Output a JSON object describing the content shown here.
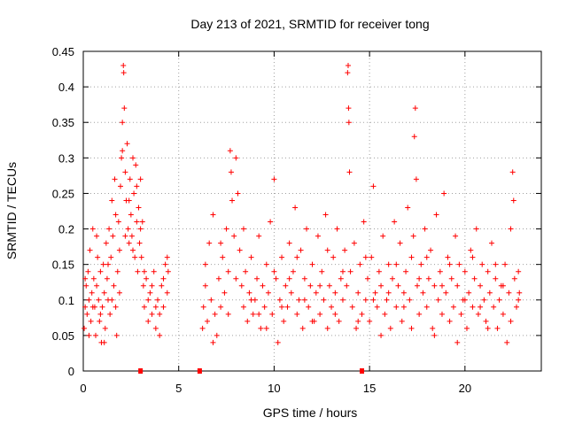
{
  "chart_data": {
    "type": "scatter",
    "title": "Day 213 of 2021, SRMTID for receiver tong",
    "xlabel": "GPS time / hours",
    "ylabel": "SRMTID / TECUs",
    "xlim": [
      0,
      24
    ],
    "ylim": [
      0,
      0.45
    ],
    "xticks": [
      0,
      5,
      10,
      15,
      20
    ],
    "xtick_labels": [
      "0",
      "5",
      "10",
      "15",
      "20"
    ],
    "yticks": [
      0,
      0.05,
      0.1,
      0.15,
      0.2,
      0.25,
      0.3,
      0.35,
      0.4,
      0.45
    ],
    "ytick_labels": [
      "0",
      "0.05",
      "0.1",
      "0.15",
      "0.2",
      "0.25",
      "0.3",
      "0.35",
      "0.4",
      "0.45"
    ],
    "grid": true,
    "marker": "+",
    "color": "#ff0000",
    "series": [
      {
        "name": "SRMTID",
        "points": [
          [
            0.05,
            0.06
          ],
          [
            0.1,
            0.09
          ],
          [
            0.15,
            0.12
          ],
          [
            0.2,
            0.08
          ],
          [
            0.25,
            0.14
          ],
          [
            0.3,
            0.1
          ],
          [
            0.35,
            0.17
          ],
          [
            0.4,
            0.07
          ],
          [
            0.45,
            0.11
          ],
          [
            0.5,
            0.2
          ],
          [
            0.55,
            0.13
          ],
          [
            0.6,
            0.09
          ],
          [
            0.65,
            0.05
          ],
          [
            0.7,
            0.12
          ],
          [
            0.75,
            0.16
          ],
          [
            0.8,
            0.1
          ],
          [
            0.85,
            0.07
          ],
          [
            0.9,
            0.14
          ],
          [
            0.95,
            0.04
          ],
          [
            1.0,
            0.09
          ],
          [
            1.05,
            0.15
          ],
          [
            1.1,
            0.11
          ],
          [
            1.15,
            0.06
          ],
          [
            1.2,
            0.18
          ],
          [
            1.25,
            0.13
          ],
          [
            1.3,
            0.1
          ],
          [
            1.35,
            0.2
          ],
          [
            1.4,
            0.08
          ],
          [
            1.45,
            0.16
          ],
          [
            1.5,
            0.24
          ],
          [
            1.55,
            0.19
          ],
          [
            1.6,
            0.12
          ],
          [
            1.65,
            0.27
          ],
          [
            1.7,
            0.09
          ],
          [
            1.75,
            0.05
          ],
          [
            1.8,
            0.14
          ],
          [
            1.85,
            0.21
          ],
          [
            1.9,
            0.17
          ],
          [
            1.95,
            0.26
          ],
          [
            2.0,
            0.3
          ],
          [
            2.05,
            0.35
          ],
          [
            2.1,
            0.43
          ],
          [
            2.12,
            0.42
          ],
          [
            2.15,
            0.37
          ],
          [
            2.2,
            0.28
          ],
          [
            2.25,
            0.24
          ],
          [
            2.3,
            0.32
          ],
          [
            2.35,
            0.2
          ],
          [
            2.4,
            0.18
          ],
          [
            2.45,
            0.27
          ],
          [
            2.5,
            0.22
          ],
          [
            2.55,
            0.19
          ],
          [
            2.6,
            0.3
          ],
          [
            2.65,
            0.25
          ],
          [
            2.7,
            0.16
          ],
          [
            2.75,
            0.29
          ],
          [
            2.8,
            0.21
          ],
          [
            2.85,
            0.14
          ],
          [
            2.9,
            0.23
          ],
          [
            2.95,
            0.18
          ],
          [
            3.0,
            0.27
          ],
          [
            3.05,
            0.16
          ],
          [
            3.1,
            0.21
          ],
          [
            3.15,
            0.12
          ],
          [
            3.2,
            0.09
          ],
          [
            3.3,
            0.13
          ],
          [
            3.4,
            0.07
          ],
          [
            3.5,
            0.11
          ],
          [
            3.6,
            0.08
          ],
          [
            3.7,
            0.14
          ],
          [
            3.8,
            0.06
          ],
          [
            3.9,
            0.1
          ],
          [
            4.0,
            0.05
          ],
          [
            4.1,
            0.12
          ],
          [
            4.2,
            0.09
          ],
          [
            4.3,
            0.15
          ],
          [
            4.4,
            0.11
          ],
          [
            4.45,
            0.14
          ],
          [
            0.1,
            0.13
          ],
          [
            0.3,
            0.05
          ],
          [
            0.5,
            0.09
          ],
          [
            0.7,
            0.19
          ],
          [
            0.9,
            0.08
          ],
          [
            1.1,
            0.04
          ],
          [
            1.3,
            0.15
          ],
          [
            1.5,
            0.1
          ],
          [
            1.7,
            0.22
          ],
          [
            1.9,
            0.11
          ],
          [
            2.05,
            0.31
          ],
          [
            2.2,
            0.19
          ],
          [
            2.4,
            0.24
          ],
          [
            2.6,
            0.17
          ],
          [
            2.8,
            0.26
          ],
          [
            3.0,
            0.2
          ],
          [
            3.2,
            0.14
          ],
          [
            3.4,
            0.1
          ],
          [
            3.6,
            0.12
          ],
          [
            3.8,
            0.09
          ],
          [
            4.0,
            0.08
          ],
          [
            4.2,
            0.13
          ],
          [
            4.4,
            0.16
          ],
          [
            6.25,
            0.06
          ],
          [
            6.3,
            0.09
          ],
          [
            6.4,
            0.12
          ],
          [
            6.5,
            0.07
          ],
          [
            6.6,
            0.18
          ],
          [
            6.7,
            0.1
          ],
          [
            6.8,
            0.22
          ],
          [
            6.9,
            0.08
          ],
          [
            7.0,
            0.05
          ],
          [
            7.1,
            0.13
          ],
          [
            7.2,
            0.09
          ],
          [
            7.3,
            0.16
          ],
          [
            7.4,
            0.11
          ],
          [
            7.5,
            0.2
          ],
          [
            7.6,
            0.14
          ],
          [
            7.7,
            0.31
          ],
          [
            7.75,
            0.28
          ],
          [
            7.8,
            0.24
          ],
          [
            7.9,
            0.19
          ],
          [
            8.0,
            0.3
          ],
          [
            8.1,
            0.25
          ],
          [
            8.2,
            0.17
          ],
          [
            8.3,
            0.12
          ],
          [
            8.4,
            0.09
          ],
          [
            8.5,
            0.14
          ],
          [
            8.6,
            0.07
          ],
          [
            8.7,
            0.11
          ],
          [
            8.8,
            0.16
          ],
          [
            8.9,
            0.08
          ],
          [
            9.0,
            0.1
          ],
          [
            9.1,
            0.13
          ],
          [
            9.2,
            0.19
          ],
          [
            9.3,
            0.06
          ],
          [
            9.4,
            0.12
          ],
          [
            9.5,
            0.09
          ],
          [
            9.6,
            0.15
          ],
          [
            9.7,
            0.11
          ],
          [
            9.8,
            0.21
          ],
          [
            9.9,
            0.08
          ],
          [
            10.0,
            0.27
          ],
          [
            10.1,
            0.13
          ],
          [
            10.2,
            0.04
          ],
          [
            10.3,
            0.1
          ],
          [
            10.4,
            0.16
          ],
          [
            10.5,
            0.07
          ],
          [
            10.6,
            0.12
          ],
          [
            10.7,
            0.09
          ],
          [
            10.8,
            0.18
          ],
          [
            10.9,
            0.11
          ],
          [
            11.0,
            0.14
          ],
          [
            11.1,
            0.23
          ],
          [
            11.2,
            0.08
          ],
          [
            11.3,
            0.1
          ],
          [
            11.4,
            0.17
          ],
          [
            11.5,
            0.06
          ],
          [
            11.6,
            0.13
          ],
          [
            11.7,
            0.2
          ],
          [
            11.8,
            0.09
          ],
          [
            11.9,
            0.12
          ],
          [
            12.0,
            0.15
          ],
          [
            12.1,
            0.07
          ],
          [
            12.2,
            0.11
          ],
          [
            12.3,
            0.19
          ],
          [
            12.4,
            0.08
          ],
          [
            12.5,
            0.14
          ],
          [
            12.6,
            0.1
          ],
          [
            12.7,
            0.22
          ],
          [
            12.8,
            0.06
          ],
          [
            12.9,
            0.12
          ],
          [
            13.0,
            0.09
          ],
          [
            13.1,
            0.16
          ],
          [
            13.2,
            0.11
          ],
          [
            13.3,
            0.2
          ],
          [
            13.4,
            0.07
          ],
          [
            13.5,
            0.13
          ],
          [
            13.6,
            0.1
          ],
          [
            13.7,
            0.17
          ],
          [
            13.8,
            0.12
          ],
          [
            13.85,
            0.42
          ],
          [
            13.88,
            0.43
          ],
          [
            13.9,
            0.37
          ],
          [
            13.92,
            0.35
          ],
          [
            13.95,
            0.28
          ],
          [
            14.0,
            0.14
          ],
          [
            14.1,
            0.09
          ],
          [
            14.2,
            0.18
          ],
          [
            14.3,
            0.06
          ],
          [
            14.4,
            0.11
          ],
          [
            14.5,
            0.15
          ],
          [
            14.6,
            0.08
          ],
          [
            14.7,
            0.21
          ],
          [
            14.8,
            0.1
          ],
          [
            14.9,
            0.13
          ],
          [
            15.0,
            0.07
          ],
          [
            15.1,
            0.16
          ],
          [
            15.2,
            0.26
          ],
          [
            15.3,
            0.11
          ],
          [
            15.4,
            0.09
          ],
          [
            15.5,
            0.14
          ],
          [
            15.6,
            0.12
          ],
          [
            15.7,
            0.19
          ],
          [
            15.8,
            0.08
          ],
          [
            15.9,
            0.1
          ],
          [
            16.0,
            0.15
          ],
          [
            16.1,
            0.06
          ],
          [
            16.2,
            0.13
          ],
          [
            16.3,
            0.21
          ],
          [
            16.4,
            0.09
          ],
          [
            16.5,
            0.12
          ],
          [
            16.6,
            0.18
          ],
          [
            16.7,
            0.07
          ],
          [
            16.8,
            0.11
          ],
          [
            16.9,
            0.14
          ],
          [
            17.0,
            0.23
          ],
          [
            17.1,
            0.1
          ],
          [
            17.2,
            0.16
          ],
          [
            17.3,
            0.19
          ],
          [
            17.35,
            0.33
          ],
          [
            17.4,
            0.37
          ],
          [
            17.45,
            0.27
          ],
          [
            17.5,
            0.12
          ],
          [
            17.6,
            0.08
          ],
          [
            17.7,
            0.15
          ],
          [
            17.8,
            0.11
          ],
          [
            17.9,
            0.2
          ],
          [
            18.0,
            0.09
          ],
          [
            18.1,
            0.13
          ],
          [
            18.2,
            0.17
          ],
          [
            18.3,
            0.06
          ],
          [
            18.4,
            0.12
          ],
          [
            18.5,
            0.22
          ],
          [
            18.6,
            0.1
          ],
          [
            18.7,
            0.14
          ],
          [
            18.8,
            0.08
          ],
          [
            18.9,
            0.25
          ],
          [
            19.0,
            0.11
          ],
          [
            19.1,
            0.16
          ],
          [
            19.2,
            0.07
          ],
          [
            19.3,
            0.13
          ],
          [
            19.4,
            0.09
          ],
          [
            19.5,
            0.19
          ],
          [
            19.6,
            0.12
          ],
          [
            19.7,
            0.15
          ],
          [
            19.8,
            0.08
          ],
          [
            19.9,
            0.1
          ],
          [
            20.0,
            0.14
          ],
          [
            20.1,
            0.06
          ],
          [
            20.2,
            0.11
          ],
          [
            20.3,
            0.17
          ],
          [
            20.4,
            0.09
          ],
          [
            20.5,
            0.13
          ],
          [
            20.6,
            0.2
          ],
          [
            20.7,
            0.08
          ],
          [
            20.8,
            0.12
          ],
          [
            20.9,
            0.15
          ],
          [
            21.0,
            0.1
          ],
          [
            21.1,
            0.07
          ],
          [
            21.2,
            0.14
          ],
          [
            21.3,
            0.11
          ],
          [
            21.4,
            0.18
          ],
          [
            21.5,
            0.09
          ],
          [
            21.6,
            0.13
          ],
          [
            21.7,
            0.06
          ],
          [
            21.8,
            0.1
          ],
          [
            21.9,
            0.12
          ],
          [
            22.0,
            0.08
          ],
          [
            22.1,
            0.15
          ],
          [
            22.2,
            0.04
          ],
          [
            22.3,
            0.11
          ],
          [
            22.4,
            0.2
          ],
          [
            22.5,
            0.28
          ],
          [
            22.55,
            0.24
          ],
          [
            22.6,
            0.13
          ],
          [
            22.7,
            0.09
          ],
          [
            22.8,
            0.14
          ],
          [
            22.85,
            0.11
          ],
          [
            6.4,
            0.15
          ],
          [
            6.8,
            0.04
          ],
          [
            7.2,
            0.18
          ],
          [
            7.6,
            0.08
          ],
          [
            8.0,
            0.13
          ],
          [
            8.4,
            0.2
          ],
          [
            8.8,
            0.1
          ],
          [
            9.2,
            0.08
          ],
          [
            9.6,
            0.06
          ],
          [
            10.0,
            0.14
          ],
          [
            10.4,
            0.09
          ],
          [
            10.8,
            0.13
          ],
          [
            11.2,
            0.16
          ],
          [
            11.6,
            0.1
          ],
          [
            12.0,
            0.07
          ],
          [
            12.4,
            0.12
          ],
          [
            12.8,
            0.17
          ],
          [
            13.2,
            0.08
          ],
          [
            13.6,
            0.14
          ],
          [
            14.4,
            0.07
          ],
          [
            14.8,
            0.16
          ],
          [
            15.2,
            0.1
          ],
          [
            15.6,
            0.05
          ],
          [
            16.0,
            0.11
          ],
          [
            16.4,
            0.15
          ],
          [
            16.8,
            0.09
          ],
          [
            17.2,
            0.06
          ],
          [
            17.6,
            0.13
          ],
          [
            18.0,
            0.16
          ],
          [
            18.4,
            0.05
          ],
          [
            18.8,
            0.12
          ],
          [
            19.2,
            0.15
          ],
          [
            19.6,
            0.04
          ],
          [
            20.0,
            0.1
          ],
          [
            20.4,
            0.16
          ],
          [
            20.8,
            0.09
          ],
          [
            21.2,
            0.06
          ],
          [
            21.6,
            0.15
          ],
          [
            22.0,
            0.12
          ],
          [
            22.4,
            0.07
          ],
          [
            22.8,
            0.1
          ]
        ]
      }
    ],
    "axis_markers_x": [
      3.0,
      6.1,
      14.6
    ]
  }
}
